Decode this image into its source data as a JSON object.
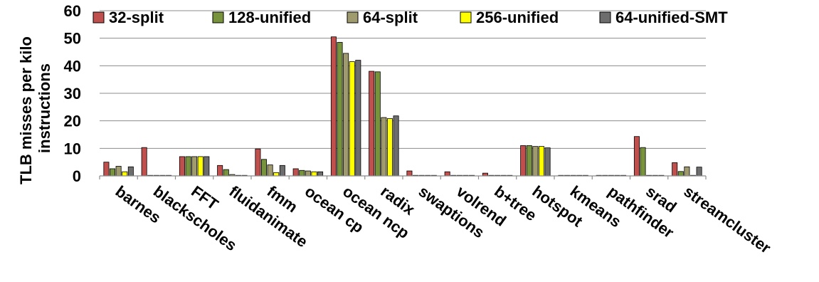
{
  "chart_data": {
    "type": "bar",
    "ylabel": "TLB misses per kilo instructions",
    "ylabel_lines": [
      "TLB misses per kilo",
      "instructions"
    ],
    "ylim": [
      0,
      60
    ],
    "yticks": [
      0,
      10,
      20,
      30,
      40,
      50,
      60
    ],
    "grid": true,
    "legend_position": "top",
    "categories": [
      "barnes",
      "blackscholes",
      "FFT",
      "fluidanimate",
      "fmm",
      "ocean cp",
      "ocean ncp",
      "radix",
      "swaptions",
      "volrend",
      "b+tree",
      "hotspot",
      "kmeans",
      "pathfinder",
      "srad",
      "streamcluster"
    ],
    "series": [
      {
        "name": "32-split",
        "color": "#c0504d",
        "values": [
          5.0,
          10.3,
          7.0,
          3.8,
          9.8,
          2.6,
          50.5,
          38.0,
          1.8,
          1.5,
          1.0,
          11.0,
          0.2,
          0.2,
          14.3,
          4.8
        ]
      },
      {
        "name": "128-unified",
        "color": "#77933c",
        "values": [
          2.6,
          0.2,
          7.0,
          2.3,
          6.0,
          2.0,
          48.5,
          37.8,
          0.2,
          0.2,
          0.2,
          11.0,
          0.2,
          0.2,
          10.3,
          1.6
        ]
      },
      {
        "name": "64-split",
        "color": "#a09b6f",
        "values": [
          3.5,
          0.2,
          7.0,
          0.5,
          4.0,
          1.8,
          44.5,
          21.2,
          0.2,
          0.2,
          0.2,
          10.7,
          0.2,
          0.2,
          0.2,
          3.3
        ]
      },
      {
        "name": "256-unified",
        "color": "#ffff00",
        "values": [
          1.5,
          0.2,
          7.0,
          0.2,
          1.2,
          1.5,
          41.5,
          20.8,
          0.2,
          0.2,
          0.2,
          10.7,
          0.2,
          0.2,
          0.2,
          0.2
        ]
      },
      {
        "name": "64-unified-SMT",
        "color": "#6d6d6d",
        "values": [
          3.3,
          0.2,
          7.0,
          0.2,
          3.8,
          1.5,
          42.0,
          21.8,
          0.2,
          0.2,
          0.2,
          10.2,
          0.2,
          0.2,
          0.2,
          3.2
        ]
      }
    ]
  }
}
